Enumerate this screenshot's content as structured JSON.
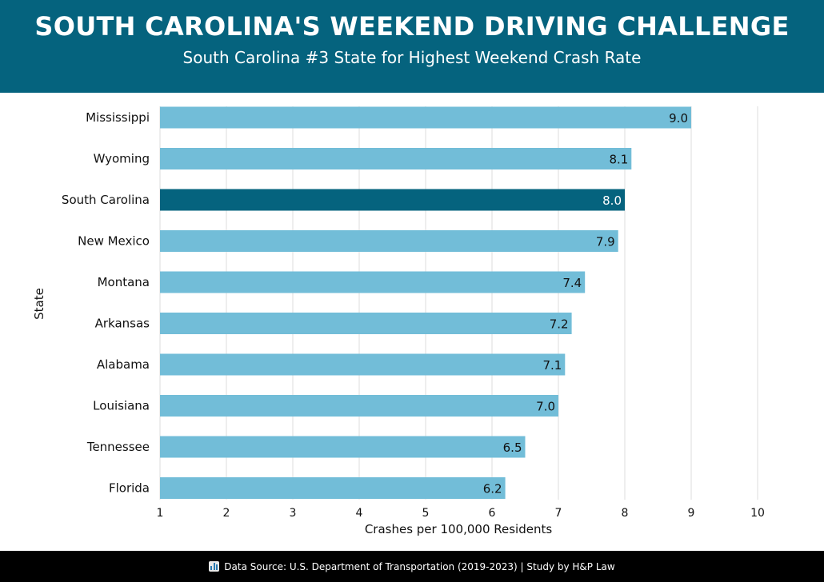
{
  "header": {
    "title": "SOUTH CAROLINA'S WEEKEND DRIVING CHALLENGE",
    "subtitle": "South Carolina #3 State for Highest Weekend Crash Rate"
  },
  "footer": {
    "icon": "bar-chart-icon",
    "text": "Data Source: U.S. Department of Transportation (2019-2023) | Study by H&P Law"
  },
  "colors": {
    "header_bg": "#05637e",
    "bar": "#72bdd8",
    "highlight_bar": "#05637e",
    "grid": "#dddddd",
    "footer_bg": "#000000"
  },
  "chart_data": {
    "type": "bar",
    "orientation": "horizontal",
    "title": "SOUTH CAROLINA'S WEEKEND DRIVING CHALLENGE",
    "subtitle": "South Carolina #3 State for Highest Weekend Crash Rate",
    "xlabel": "Crashes per 100,000 Residents",
    "ylabel": "State",
    "categories": [
      "Mississippi",
      "Wyoming",
      "South Carolina",
      "New Mexico",
      "Montana",
      "Arkansas",
      "Alabama",
      "Louisiana",
      "Tennessee",
      "Florida"
    ],
    "values": [
      9.0,
      8.1,
      8.0,
      7.9,
      7.4,
      7.2,
      7.1,
      7.0,
      6.5,
      6.2
    ],
    "value_labels": [
      "9.0",
      "8.1",
      "8.0",
      "7.9",
      "7.4",
      "7.2",
      "7.1",
      "7.0",
      "6.5",
      "6.2"
    ],
    "highlight": "South Carolina",
    "xlim": [
      1,
      10
    ],
    "xticks": [
      1,
      2,
      3,
      4,
      5,
      6,
      7,
      8,
      9,
      10
    ],
    "grid": true,
    "legend": "none"
  }
}
